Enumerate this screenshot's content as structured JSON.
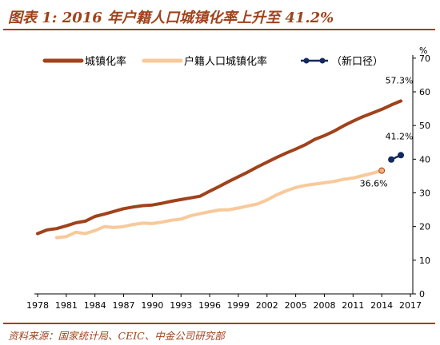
{
  "title": "图表 1: 2016 年户籍人口城镇化率上升至 41.2%",
  "source": "资料来源：国家统计局、CEIC、中金公司研究部",
  "colors": {
    "urbanization": "#A0421B",
    "hukou": "#F8C99A",
    "new_caliber": "#13295F",
    "accent": "#A0421B"
  },
  "chart_data": {
    "type": "line",
    "x_ticks": [
      "1978",
      "1981",
      "1984",
      "1987",
      "1990",
      "1993",
      "1996",
      "1999",
      "2002",
      "2005",
      "2008",
      "2011",
      "2014",
      "2017"
    ],
    "y_ticks": [
      "0",
      "10",
      "20",
      "30",
      "40",
      "50",
      "60",
      "70",
      "%"
    ],
    "xlim": [
      1978,
      2017
    ],
    "ylim": [
      0,
      70
    ],
    "y_unit": "%",
    "legend_position": "top",
    "series": [
      {
        "name": "城镇化率",
        "color": "#A0421B",
        "x": [
          1978,
          1979,
          1980,
          1981,
          1982,
          1983,
          1984,
          1985,
          1986,
          1987,
          1988,
          1989,
          1990,
          1991,
          1992,
          1993,
          1994,
          1995,
          1996,
          1997,
          1998,
          1999,
          2000,
          2001,
          2002,
          2003,
          2004,
          2005,
          2006,
          2007,
          2008,
          2009,
          2010,
          2011,
          2012,
          2013,
          2014,
          2015,
          2016
        ],
        "y": [
          17.9,
          19.0,
          19.4,
          20.2,
          21.1,
          21.6,
          23.0,
          23.7,
          24.5,
          25.3,
          25.8,
          26.2,
          26.4,
          26.9,
          27.5,
          28.0,
          28.5,
          29.0,
          30.5,
          31.9,
          33.4,
          34.8,
          36.2,
          37.7,
          39.1,
          40.5,
          41.8,
          43.0,
          44.3,
          45.9,
          47.0,
          48.3,
          49.9,
          51.3,
          52.6,
          53.7,
          54.8,
          56.1,
          57.3
        ]
      },
      {
        "name": "户籍人口城镇化率",
        "color": "#F8C99A",
        "x": [
          1980,
          1981,
          1982,
          1983,
          1984,
          1985,
          1986,
          1987,
          1988,
          1989,
          1990,
          1991,
          1992,
          1993,
          1994,
          1995,
          1996,
          1997,
          1998,
          1999,
          2000,
          2001,
          2002,
          2003,
          2004,
          2005,
          2006,
          2007,
          2008,
          2009,
          2010,
          2011,
          2012,
          2013,
          2014
        ],
        "y": [
          16.7,
          17.0,
          18.3,
          17.9,
          18.8,
          20.0,
          19.7,
          20.0,
          20.6,
          21.0,
          20.9,
          21.3,
          21.9,
          22.2,
          23.2,
          23.8,
          24.4,
          24.9,
          25.0,
          25.5,
          26.1,
          26.7,
          27.9,
          29.4,
          30.6,
          31.6,
          32.2,
          32.6,
          33.0,
          33.4,
          34.0,
          34.4,
          35.1,
          35.8,
          36.6
        ]
      },
      {
        "name": "（新口径）",
        "color": "#13295F",
        "x": [
          2015,
          2016
        ],
        "y": [
          39.9,
          41.2
        ]
      }
    ],
    "annotations": [
      {
        "text": "57.3%",
        "x": 2016,
        "y": 57.3
      },
      {
        "text": "41.2%",
        "x": 2016,
        "y": 41.2
      },
      {
        "text": "36.6%",
        "x": 2014,
        "y": 36.6
      }
    ]
  }
}
